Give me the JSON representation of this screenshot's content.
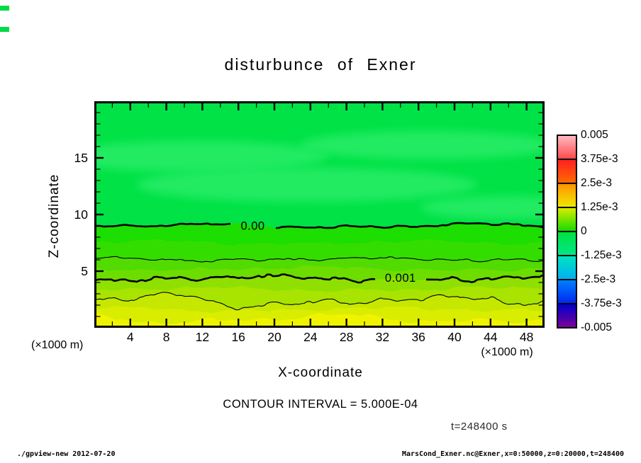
{
  "title": "disturbunce of Exner",
  "axes": {
    "x": {
      "title": "X-coordinate",
      "unit": "(×1000 m)",
      "ticks": [
        4,
        8,
        12,
        16,
        20,
        24,
        28,
        32,
        36,
        40,
        44,
        48
      ],
      "range": [
        0,
        50
      ]
    },
    "z": {
      "title": "Z-coordinate",
      "unit": "(×1000 m)",
      "ticks": [
        5,
        10,
        15
      ],
      "range": [
        0,
        20
      ]
    }
  },
  "colorbar": {
    "tick_labels": [
      "0.005",
      "3.75e-3",
      "2.5e-3",
      "1.25e-3",
      "0",
      "-1.25e-3",
      "-2.5e-3",
      "-3.75e-3",
      "-0.005"
    ],
    "cells": [
      {
        "from": "#FFB8C2",
        "to": "#FF4B4B"
      },
      {
        "from": "#FF2121",
        "to": "#FF6A00"
      },
      {
        "from": "#FF9400",
        "to": "#F0E800"
      },
      {
        "from": "#D8EC00",
        "to": "#16DC00"
      },
      {
        "from": "#00E23E",
        "to": "#00E689"
      },
      {
        "from": "#00E4C0",
        "to": "#00B0F0"
      },
      {
        "from": "#0080FF",
        "to": "#0028F0"
      },
      {
        "from": "#0000CC",
        "to": "#7A0099"
      }
    ]
  },
  "annotations": {
    "contour_interval": "CONTOUR INTERVAL = 5.000E-04",
    "time": "t=248400 s"
  },
  "footer": {
    "left": "./gpview-new  2012-07-20",
    "right": "MarsCond_Exner.nc@Exner,x=0:50000,z=0:20000,t=248400"
  },
  "chart_data": {
    "type": "filled-contour",
    "title": "disturbunce of Exner",
    "xlabel": "X-coordinate (×1000 m)",
    "ylabel": "Z-coordinate (×1000 m)",
    "xlim": [
      0,
      50
    ],
    "ylim": [
      0,
      20
    ],
    "value_range": [
      -0.005,
      0.005
    ],
    "contour_interval": 0.0005,
    "time_seconds": 248400,
    "contours": [
      {
        "level": 0.0,
        "label": "0.00",
        "z_mean": 9.0,
        "style": "thick",
        "label_x": 17.6
      },
      {
        "level": 0.0005,
        "z_mean": 6.05,
        "style": "thin"
      },
      {
        "level": 0.001,
        "label": "0.001",
        "z_mean": 4.35,
        "style": "thick",
        "label_x": 34.0
      },
      {
        "level": 0.0015,
        "z_mean": 2.45,
        "style": "thin"
      },
      {
        "level": 0.002,
        "z_mean": 0.8,
        "style": "none"
      }
    ],
    "bands": [
      {
        "range": [
          -0.00125,
          0
        ],
        "color": "#00E246",
        "z_top": 20
      },
      {
        "range": [
          0,
          0.0005
        ],
        "color": "#1CDE00",
        "z_top": 9.0
      },
      {
        "range": [
          0.0005,
          0.001
        ],
        "color": "#52DB00",
        "z_top": 6.05
      },
      {
        "range": [
          0.001,
          0.0015
        ],
        "color": "#8FE000",
        "z_top": 4.35
      },
      {
        "range": [
          0.0015,
          0.002
        ],
        "color": "#C6E800",
        "z_top": 2.45
      },
      {
        "range": [
          0.002,
          0.0025
        ],
        "color": "#F0F300",
        "z_top": 0.8
      }
    ],
    "legend_position": "right",
    "grid": false
  }
}
